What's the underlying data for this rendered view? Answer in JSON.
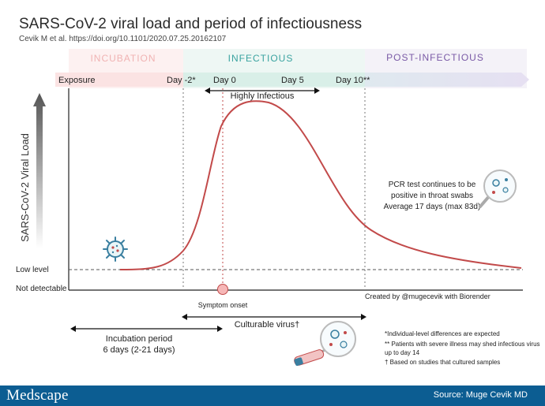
{
  "header": {
    "title": "SARS-CoV-2 viral load and period of infectiousness",
    "citation": "Cevik M et al. https://doi.org/10.1101/2020.07.25.20162107"
  },
  "phases": {
    "incubation": "INCUBATION",
    "infectious": "INFECTIOUS",
    "post_infectious": "POST-INFECTIOUS"
  },
  "timeline": {
    "exposure": "Exposure",
    "day_minus2": "Day -2*",
    "day0": "Day 0",
    "day5": "Day 5",
    "day10": "Day 10**",
    "highly_infectious": "Highly Infectious"
  },
  "axis": {
    "y_label": "SARS-CoV-2 Viral Load",
    "low_level": "Low level",
    "not_detectable": "Not detectable"
  },
  "annotations": {
    "pcr_line1": "PCR test continues to be",
    "pcr_line2": "positive in throat swabs",
    "pcr_line3": "Average 17 days (max 83d)",
    "created_by": "Created by @mugecevik with Biorender",
    "symptom_onset": "Symptom onset",
    "culturable_virus": "Culturable virus†",
    "incubation_period": "Incubation period",
    "incubation_days": "6 days (2-21 days)"
  },
  "notes": {
    "note1": "*Individual-level differences are expected",
    "note2": "** Patients with severe illness may shed infectious virus",
    "note3": "up to day 14",
    "note4": "† Based on studies that cultured samples"
  },
  "footer": {
    "logo": "Medscape",
    "source": "Source: Muge Cevik MD"
  },
  "colors": {
    "incubation_band": "#fbe3e3",
    "infectious_band": "#d9efe8",
    "post_band": "#e4e0ef",
    "curve": "#c24a4a",
    "footer": "#0c5d92"
  }
}
